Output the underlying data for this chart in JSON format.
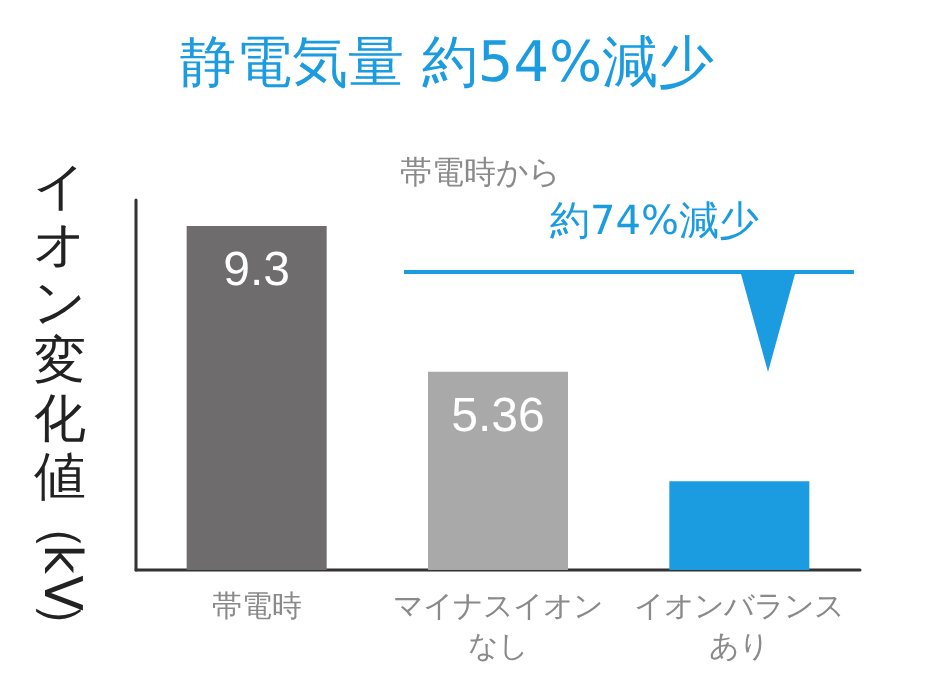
{
  "chart_data": {
    "type": "bar",
    "title": "静電気量 約54%減少",
    "ylabel": "イオン変化値（kV）",
    "categories": [
      "帯電時",
      "マイナスイオンなし",
      "イオンバランスあり"
    ],
    "values": [
      9.3,
      5.36,
      2.4
    ],
    "colors": [
      "#6e6c6d",
      "#a9a9a9",
      "#1b9be0"
    ],
    "value_labels": [
      "9.3",
      "5.36",
      null
    ],
    "annotations": [
      "帯電時から",
      "約74%減少"
    ]
  }
}
